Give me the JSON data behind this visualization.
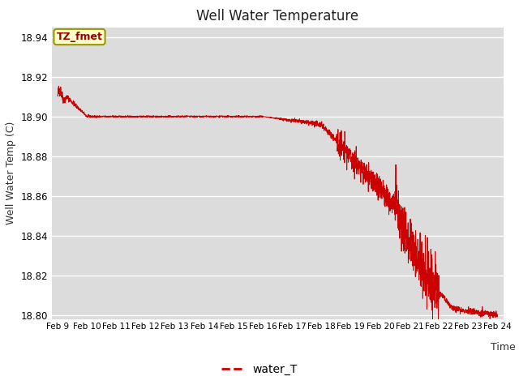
{
  "title": "Well Water Temperature",
  "ylabel": "Well Water Temp (C)",
  "xlabel": "Time",
  "legend_label": "water_T",
  "annotation_text": "TZ_fmet",
  "line_color": "#cc0000",
  "background_color": "#dcdcdc",
  "ylim": [
    18.798,
    18.945
  ],
  "yticks": [
    18.8,
    18.82,
    18.84,
    18.86,
    18.88,
    18.9,
    18.92,
    18.94
  ],
  "xtick_labels": [
    "Feb 9",
    "Feb 10",
    "Feb 11",
    "Feb 12",
    "Feb 13",
    "Feb 14",
    "Feb 15",
    "Feb 16",
    "Feb 17",
    "Feb 18",
    "Feb 19",
    "Feb 20",
    "Feb 21",
    "Feb 22",
    "Feb 23",
    "Feb 24"
  ],
  "n_points": 3000
}
